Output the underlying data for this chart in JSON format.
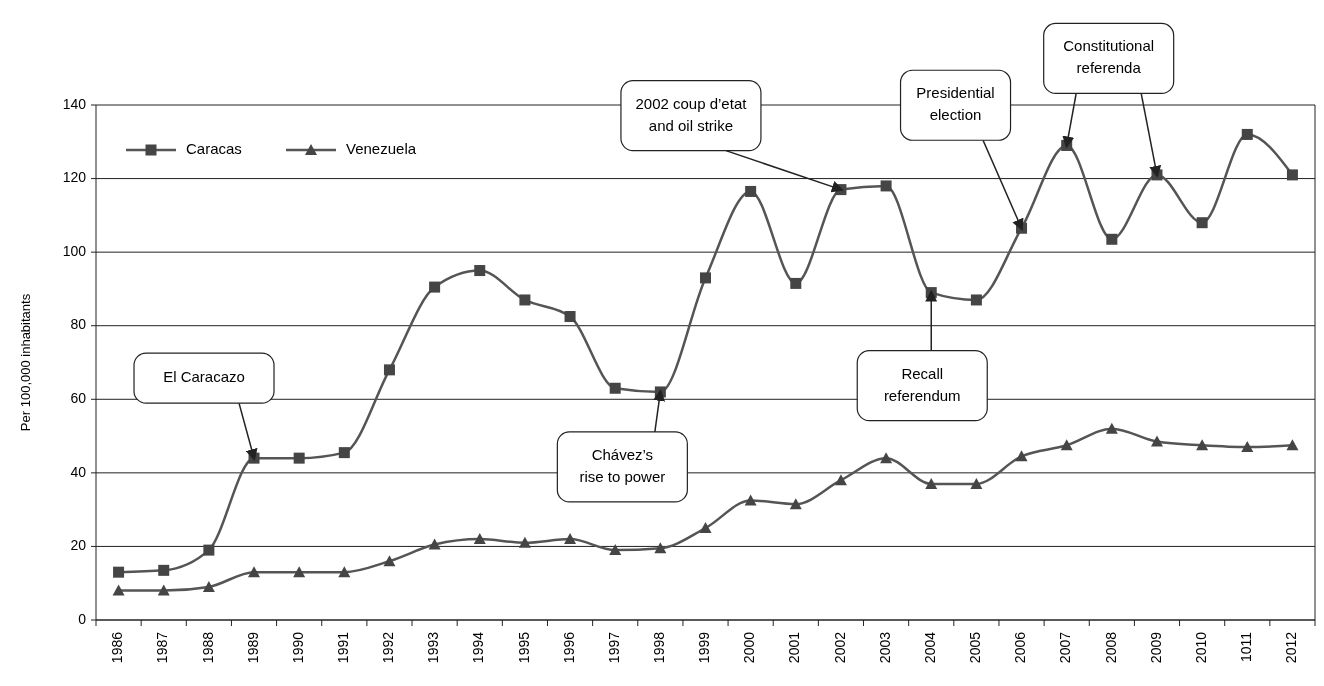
{
  "chart_data": {
    "type": "line",
    "ylabel": "Per 100,000 inhabitants",
    "categories": [
      "1986",
      "1987",
      "1988",
      "1989",
      "1990",
      "1991",
      "1992",
      "1993",
      "1994",
      "1995",
      "1996",
      "1997",
      "1998",
      "1999",
      "2000",
      "2001",
      "2002",
      "2003",
      "2004",
      "2005",
      "2006",
      "2007",
      "2008",
      "2009",
      "2010",
      "1011",
      "2012"
    ],
    "series": [
      {
        "name": "Caracas",
        "color": "#555555",
        "marker": "square",
        "values": [
          13,
          13.5,
          19,
          44,
          44,
          45.5,
          68,
          90.5,
          95,
          87,
          82.5,
          63,
          62,
          93,
          116.5,
          91.5,
          117,
          118,
          89,
          87,
          106.5,
          129,
          103.5,
          121,
          108,
          132,
          121
        ]
      },
      {
        "name": "Venezuela",
        "color": "#555555",
        "marker": "triangle",
        "values": [
          8,
          8,
          9,
          13,
          13,
          13,
          16,
          20.5,
          22,
          21,
          22,
          19,
          19.5,
          25,
          32.5,
          31.5,
          38,
          44,
          37,
          37,
          44.5,
          47.5,
          52,
          48.5,
          47.5,
          47,
          47.5
        ]
      }
    ],
    "ylim": [
      0,
      140
    ],
    "yticks": [
      0,
      20,
      40,
      60,
      80,
      100,
      120,
      140
    ],
    "grid": "y",
    "legend": "top left",
    "line_style": "solid",
    "annotations": [
      {
        "text": "El Caracazo",
        "x": "1989",
        "y": 44
      },
      {
        "text": "Chávez’s\nrise to power",
        "x": "1998",
        "y": 62
      },
      {
        "text": "2002 coup d’etat\nand oil strike",
        "x": "2002",
        "y": 117
      },
      {
        "text": "Presidential\nelection",
        "x": "2006",
        "y": 106.5
      },
      {
        "text": "Recall\nreferendum",
        "x": "2004",
        "y": 89
      },
      {
        "text": "Constitutional\nreferenda",
        "x": "2007",
        "y": 129
      }
    ]
  }
}
